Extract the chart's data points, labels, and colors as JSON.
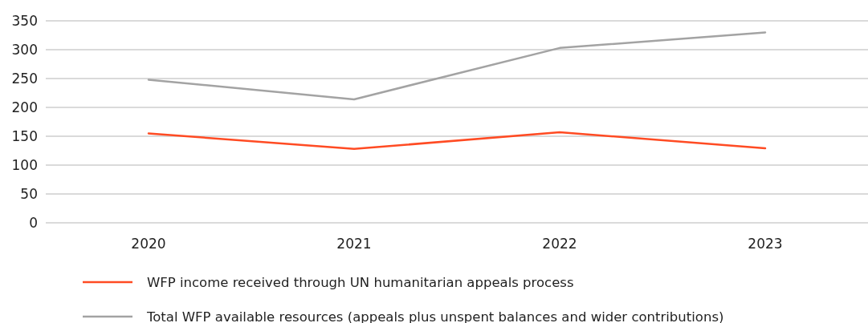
{
  "chart_data": {
    "type": "line",
    "categories": [
      "2020",
      "2021",
      "2022",
      "2023"
    ],
    "series": [
      {
        "name": "WFP income received through UN humanitarian appeals process",
        "color": "#ff4b23",
        "values": [
          155,
          128,
          157,
          129
        ]
      },
      {
        "name": "Total WFP available resources (appeals plus unspent balances and wider contributions)",
        "color": "#a3a3a3",
        "values": [
          248,
          214,
          303,
          330
        ]
      }
    ],
    "ylim": [
      0,
      350
    ],
    "yticks": [
      0,
      50,
      100,
      150,
      200,
      250,
      300,
      350
    ],
    "grid": "y",
    "legend": "bottom",
    "marker": "none",
    "line_style": "solid"
  }
}
